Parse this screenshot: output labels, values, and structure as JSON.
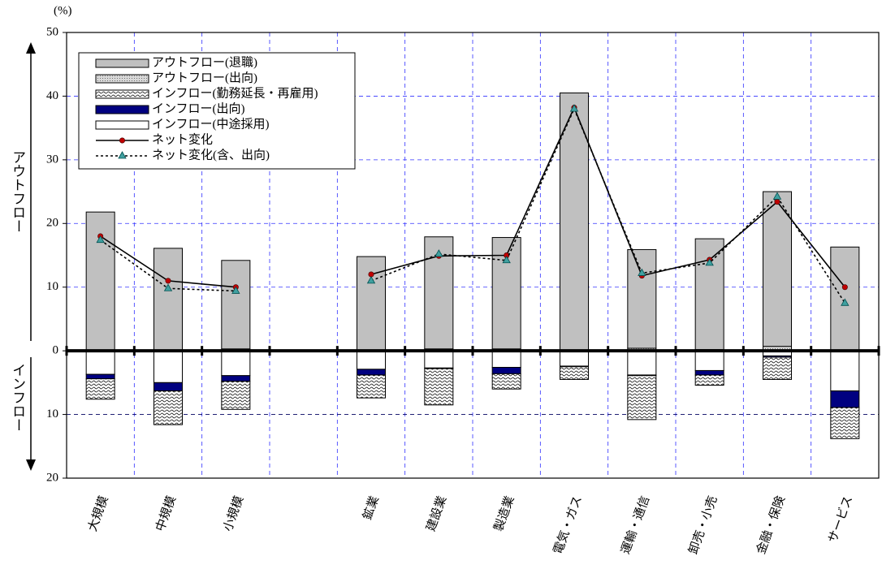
{
  "chart_data": {
    "type": "bar",
    "unit_label": "(%)",
    "y_label_top": "アウトフロー",
    "y_label_bottom": "インフロー",
    "categories": [
      "大規模",
      "中規模",
      "小規模",
      null,
      "鉱業",
      "建設業",
      "製造業",
      "電気・ガス",
      "運輸・通信",
      "卸売・小売",
      "金融・保険",
      "サービス"
    ],
    "ylim": [
      -20,
      50
    ],
    "yticks": [
      {
        "value": -20,
        "label": "20"
      },
      {
        "value": -10,
        "label": "10"
      },
      0,
      10,
      20,
      30,
      40,
      50
    ],
    "grid": true,
    "legend": "upper left",
    "series": [
      {
        "name": "アウトフロー(退職)",
        "kind": "bar",
        "color": "#c0c0c0",
        "values": [
          21.7,
          16.0,
          13.9,
          null,
          14.7,
          17.6,
          17.5,
          40.4,
          15.5,
          17.4,
          24.3,
          16.2
        ]
      },
      {
        "name": "アウトフロー(出向)",
        "kind": "bar",
        "color": "#a0a0a0",
        "pattern": "dots",
        "values": [
          0.1,
          0.1,
          0.3,
          null,
          0.1,
          0.3,
          0.3,
          0.1,
          0.4,
          0.2,
          0.7,
          0.1
        ]
      },
      {
        "name": "インフロー(勤務延長・再雇用)",
        "kind": "bar",
        "color": "#000000",
        "pattern": "waves",
        "values": [
          -3.2,
          -5.3,
          -4.4,
          null,
          -3.6,
          -5.7,
          -2.4,
          -2.0,
          -6.9,
          -1.6,
          -3.5,
          -4.9
        ]
      },
      {
        "name": "インフロー(出向)",
        "kind": "bar",
        "color": "#000080",
        "values": [
          -0.7,
          -1.3,
          -0.9,
          null,
          -0.9,
          -0.1,
          -1.0,
          -0.1,
          -0.1,
          -0.7,
          -0.2,
          -2.6
        ]
      },
      {
        "name": "インフロー(中途採用)",
        "kind": "bar",
        "color": "#ffffff",
        "values": [
          -3.7,
          -5.0,
          -3.9,
          null,
          -2.9,
          -2.7,
          -2.6,
          -2.4,
          -3.8,
          -3.1,
          -0.8,
          -6.3
        ]
      },
      {
        "name": "ネット変化",
        "kind": "line",
        "color": "#000000",
        "marker": "circle",
        "marker_color": "#c00000",
        "values": [
          18.0,
          11.0,
          10.0,
          null,
          12.0,
          14.9,
          15.0,
          38.2,
          11.8,
          14.3,
          23.4,
          10.0
        ]
      },
      {
        "name": "ネット変化(含、出向)",
        "kind": "line",
        "color": "#000000",
        "dash": true,
        "marker": "triangle",
        "marker_color": "#40a0a0",
        "values": [
          17.4,
          9.8,
          9.4,
          null,
          11.0,
          15.2,
          14.2,
          38.0,
          12.2,
          13.8,
          24.2,
          7.5
        ]
      }
    ]
  }
}
